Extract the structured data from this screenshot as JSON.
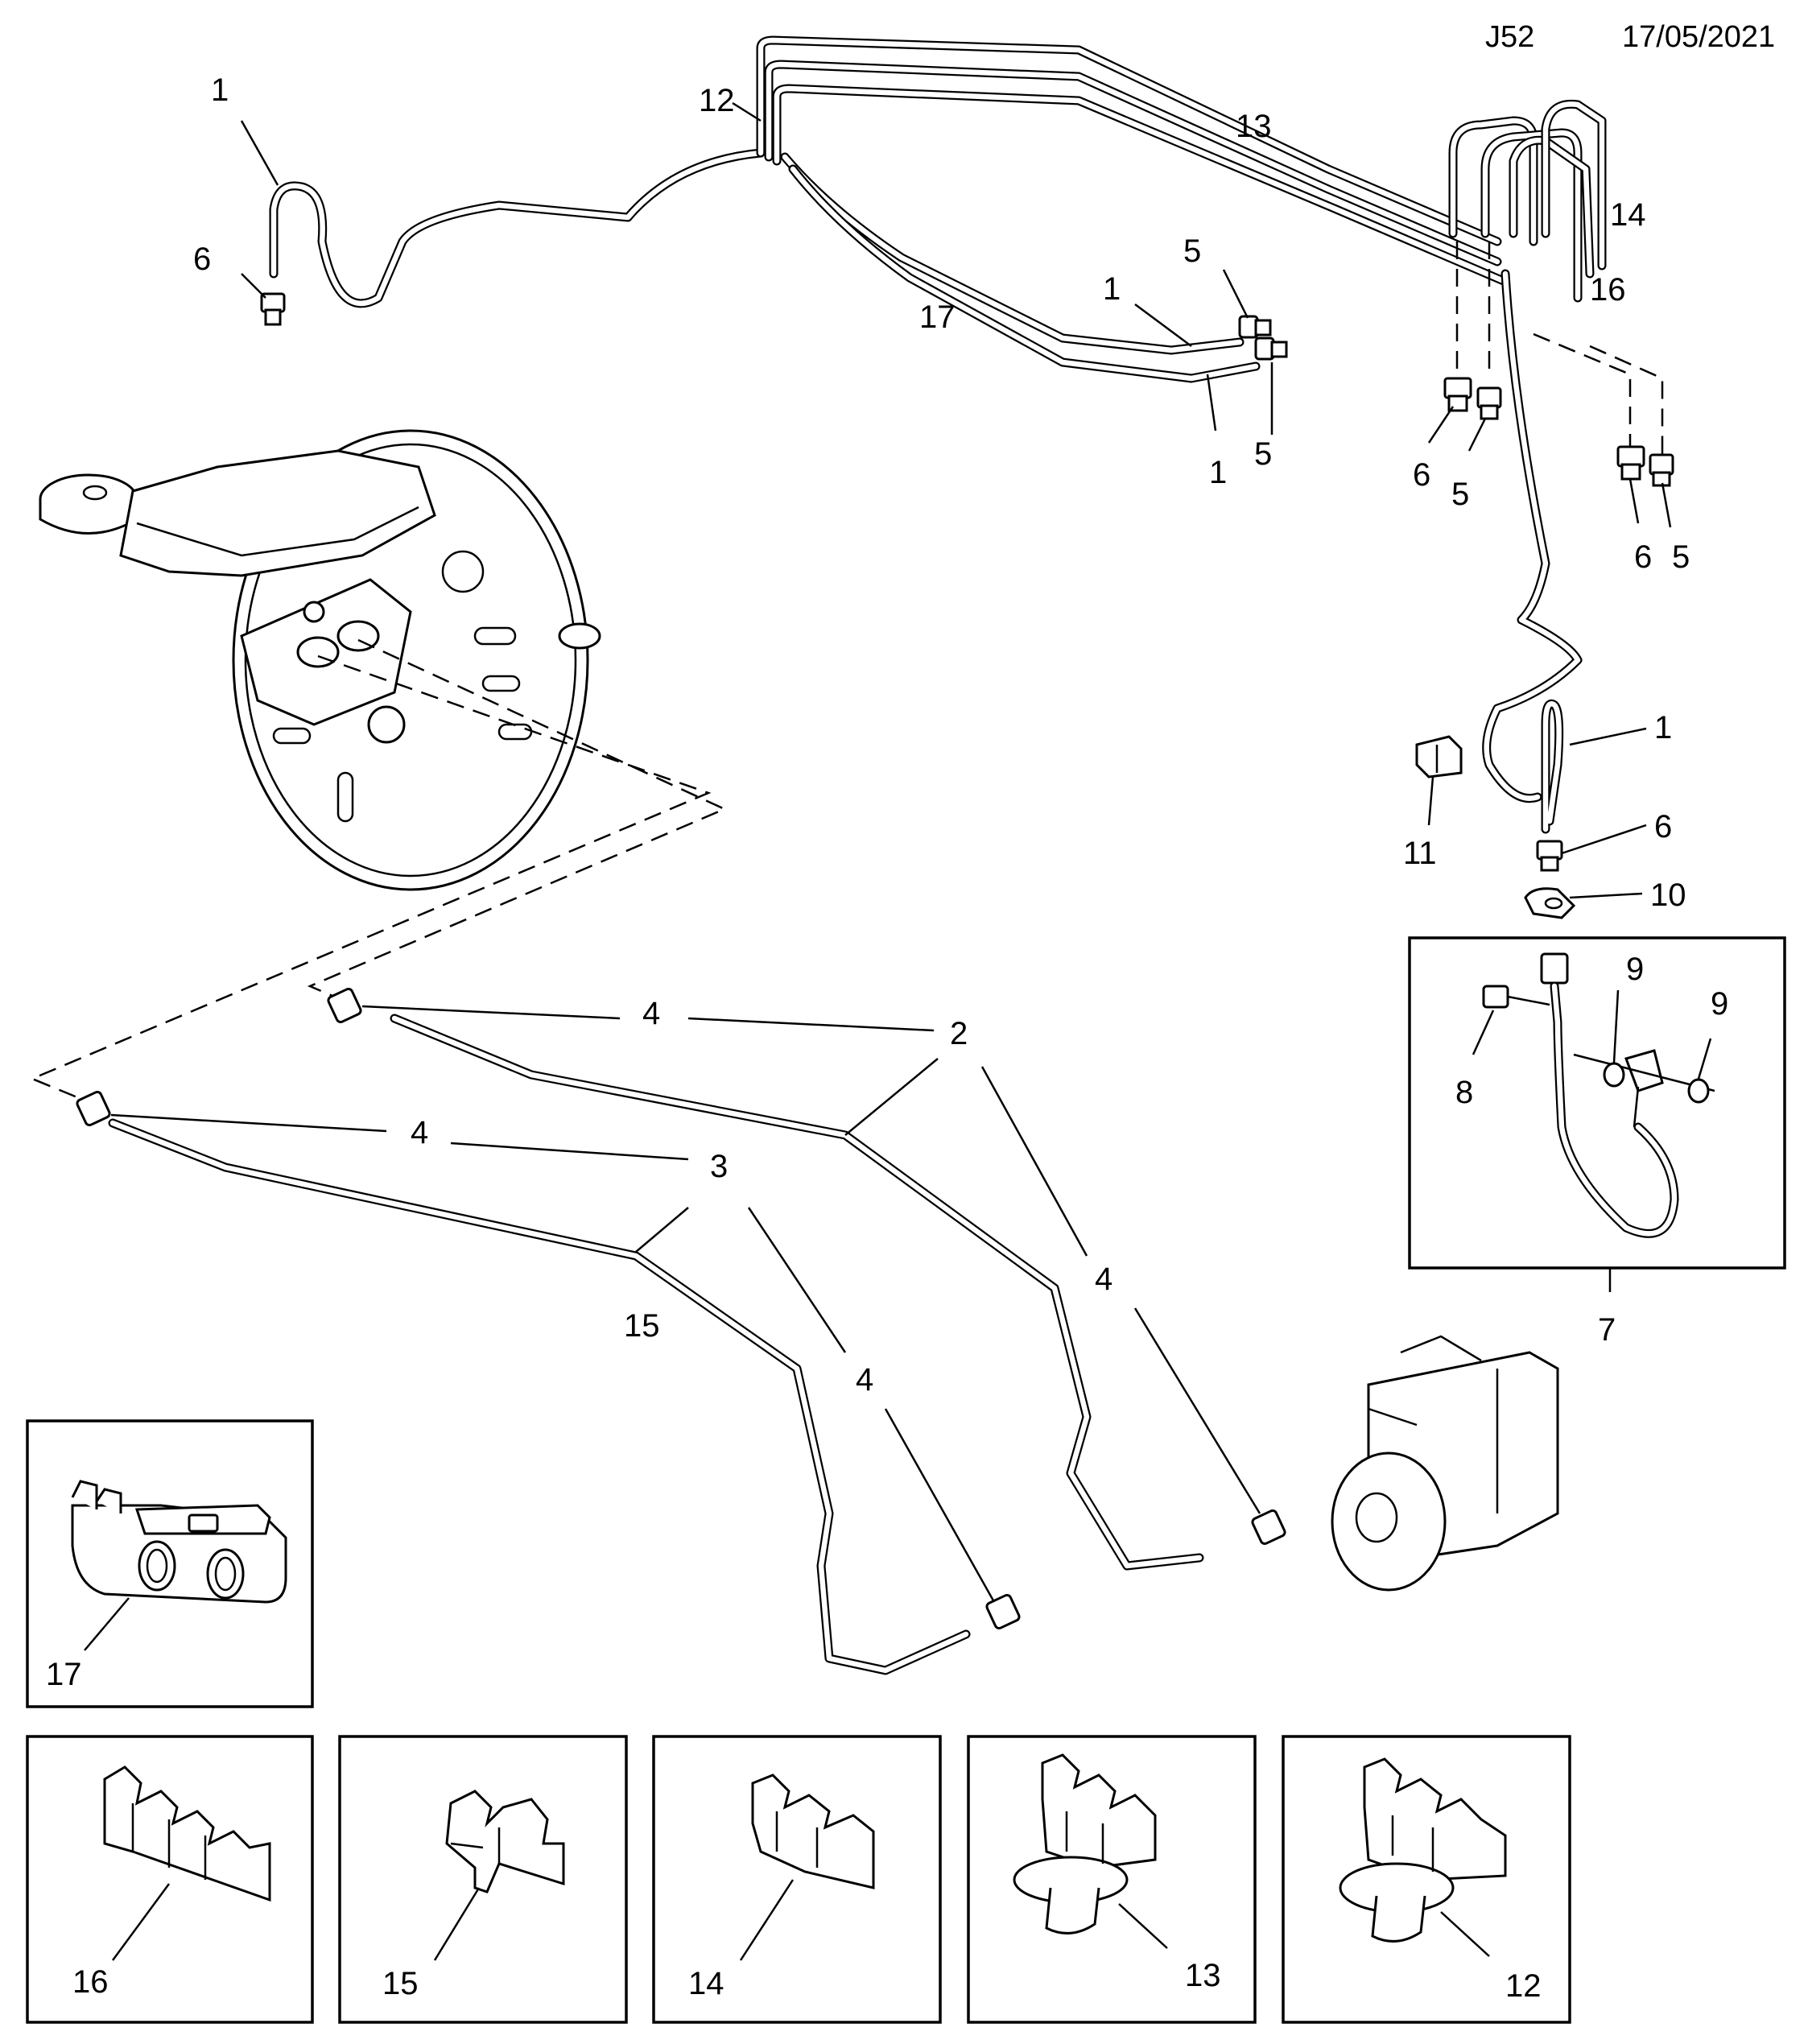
{
  "header": {
    "code": "J52",
    "date": "17/05/2021"
  },
  "callouts": {
    "c1a": "1",
    "c6a": "6",
    "c12": "12",
    "c13": "13",
    "c14": "14",
    "c16": "16",
    "c5a": "5",
    "c1b": "1",
    "c17": "17",
    "c5b": "5",
    "c1c": "1",
    "c6b": "6",
    "c5c": "5",
    "c6c": "6",
    "c5d": "5",
    "c1d": "1",
    "c11": "11",
    "c6d": "6",
    "c10": "10",
    "c9a": "9",
    "c9b": "9",
    "c8": "8",
    "c7": "7",
    "c4a": "4",
    "c2": "2",
    "c4b": "4",
    "c3": "3",
    "c4c": "4",
    "c15": "15",
    "c4d": "4"
  },
  "insets": {
    "i17": "17",
    "i16": "16",
    "i15": "15",
    "i14": "14",
    "i13": "13",
    "i12": "12"
  }
}
